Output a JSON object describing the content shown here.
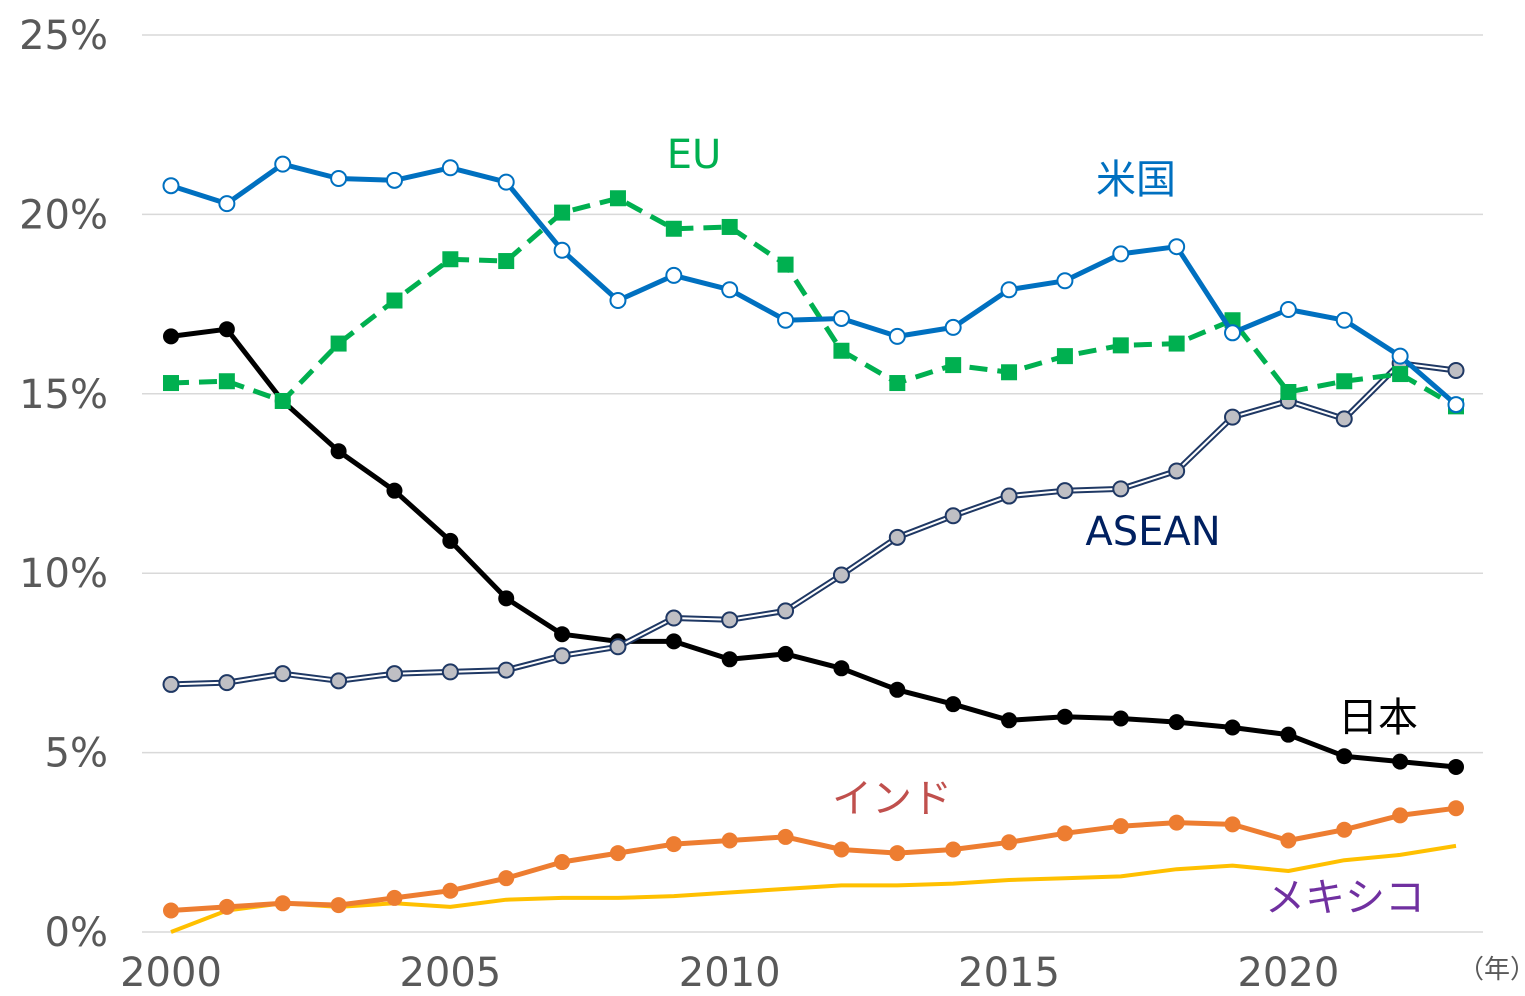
{
  "chart_data": {
    "type": "line",
    "title": "",
    "xlabel": "",
    "ylabel": "",
    "x_unit_label": "（年）",
    "ylim": [
      0,
      25
    ],
    "xlim": [
      2000,
      2023
    ],
    "y_ticks": [
      0,
      5,
      10,
      15,
      20,
      25
    ],
    "y_tick_labels": [
      "0%",
      "5%",
      "10%",
      "15%",
      "20%",
      "25%"
    ],
    "x_ticks": [
      2000,
      2005,
      2010,
      2015,
      2020
    ],
    "x_tick_labels": [
      "2000",
      "2005",
      "2010",
      "2015",
      "2020"
    ],
    "grid": true,
    "x": [
      2000,
      2001,
      2002,
      2003,
      2004,
      2005,
      2006,
      2007,
      2008,
      2009,
      2010,
      2011,
      2012,
      2013,
      2014,
      2015,
      2016,
      2017,
      2018,
      2019,
      2020,
      2021,
      2022,
      2023
    ],
    "series": [
      {
        "key": "mexico",
        "name": "メキシコ",
        "color": "#ffc000",
        "label_color": "#7030a0",
        "style": "line",
        "values": [
          0.0,
          0.6,
          0.8,
          0.7,
          0.8,
          0.7,
          0.9,
          0.95,
          0.95,
          1.0,
          1.1,
          1.2,
          1.3,
          1.3,
          1.35,
          1.45,
          1.5,
          1.55,
          1.75,
          1.85,
          1.7,
          2.0,
          2.15,
          2.4
        ]
      },
      {
        "key": "india",
        "name": "インド",
        "color": "#ed7d31",
        "label_color": "#c0504d",
        "style": "filled-circle",
        "values": [
          0.6,
          0.7,
          0.8,
          0.75,
          0.95,
          1.15,
          1.5,
          1.95,
          2.2,
          2.45,
          2.55,
          2.65,
          2.3,
          2.2,
          2.3,
          2.5,
          2.75,
          2.95,
          3.05,
          3.0,
          2.55,
          2.85,
          3.25,
          3.45
        ]
      },
      {
        "key": "japan",
        "name": "日本",
        "color": "#000000",
        "label_color": "#000000",
        "style": "filled-circle",
        "values": [
          16.6,
          16.8,
          14.8,
          13.4,
          12.3,
          10.9,
          9.3,
          8.3,
          8.1,
          8.1,
          7.6,
          7.75,
          7.35,
          6.75,
          6.35,
          5.9,
          6.0,
          5.95,
          5.85,
          5.7,
          5.5,
          4.9,
          4.75,
          4.6
        ]
      },
      {
        "key": "asean",
        "name": "ASEAN",
        "color": "#1f3864",
        "label_color": "#002060",
        "style": "double-line-grey-circle",
        "values": [
          6.9,
          6.95,
          7.2,
          7.0,
          7.2,
          7.25,
          7.3,
          7.7,
          7.95,
          8.75,
          8.7,
          8.95,
          9.95,
          11.0,
          11.6,
          12.15,
          12.3,
          12.35,
          12.85,
          14.35,
          14.8,
          14.3,
          15.85,
          15.65
        ]
      },
      {
        "key": "eu",
        "name": "EU",
        "color": "#00b050",
        "label_color": "#00b050",
        "style": "dashed-square",
        "values": [
          15.3,
          15.35,
          14.8,
          16.4,
          17.6,
          18.75,
          18.7,
          20.05,
          20.45,
          19.6,
          19.65,
          18.6,
          16.2,
          15.3,
          15.8,
          15.6,
          16.05,
          16.35,
          16.4,
          17.05,
          15.05,
          15.35,
          15.55,
          14.65
        ]
      },
      {
        "key": "us",
        "name": "米国",
        "color": "#0070c0",
        "label_color": "#0070c0",
        "style": "open-circle",
        "values": [
          20.8,
          20.3,
          21.4,
          21.0,
          20.95,
          21.3,
          20.9,
          19.0,
          17.6,
          18.3,
          17.9,
          17.05,
          17.1,
          16.6,
          16.85,
          17.9,
          18.15,
          18.9,
          19.1,
          16.7,
          17.35,
          17.05,
          16.05,
          14.7
        ]
      }
    ]
  }
}
